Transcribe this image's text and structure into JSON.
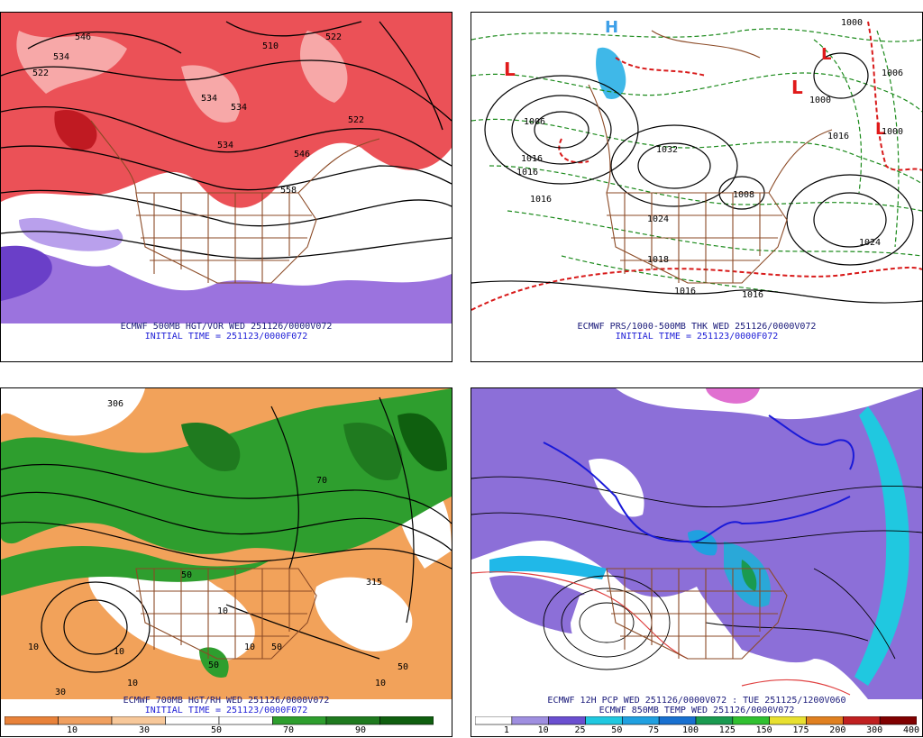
{
  "panels": {
    "top_left": {
      "caption": "ECMWF 500MB HGT/VOR WED 251126/0000V072",
      "init": "INITIAL TIME = 251123/0000F072",
      "contour_labels": [
        "546",
        "534",
        "522",
        "534",
        "510",
        "522",
        "534",
        "522",
        "534",
        "546",
        "558"
      ]
    },
    "top_right": {
      "caption": "ECMWF PRS/1000-500MB THK WED 251126/0000V072",
      "init": "INITIAL TIME = 251123/0000F072",
      "contour_labels": [
        "1000",
        "1006",
        "1006",
        "1016",
        "1016",
        "1016",
        "1024",
        "1032",
        "1008",
        "1016",
        "1024",
        "1016",
        "1016",
        "1018",
        "1000",
        "1000"
      ],
      "low_marker": "L",
      "high_marker": "H"
    },
    "bottom_left": {
      "caption": "ECMWF 700MB HGT/RH WED 251126/0000V072",
      "init": "INITIAL TIME = 251123/0000F072",
      "contour_labels": [
        "306",
        "315",
        "10",
        "50",
        "70",
        "10",
        "10",
        "50",
        "10",
        "50",
        "10",
        "10",
        "50",
        "30"
      ],
      "legend_ticks": [
        "10",
        "30",
        "50",
        "70",
        "90"
      ],
      "legend_colors": [
        "#e8823a",
        "#f0a060",
        "#f7c89a",
        "#ffffff",
        "#ffffff",
        "#2e9e2e",
        "#1f7a1f",
        "#0f5f0f"
      ]
    },
    "bottom_right": {
      "caption": "ECMWF 12H PCP WED 251126/0000V072 : TUE 251125/1200V060",
      "caption2": "ECMWF 850MB TEMP WED 251126/0000V072",
      "legend_ticks": [
        "1",
        "10",
        "25",
        "50",
        "75",
        "100",
        "125",
        "150",
        "175",
        "200",
        "300",
        "400"
      ],
      "legend_colors": [
        "#ffffff",
        "#9f8fe0",
        "#6a4fd0",
        "#20c8e0",
        "#20a0e0",
        "#1870d0",
        "#1a9a50",
        "#30c030",
        "#e8e030",
        "#e08020",
        "#c02020",
        "#800000"
      ]
    }
  }
}
